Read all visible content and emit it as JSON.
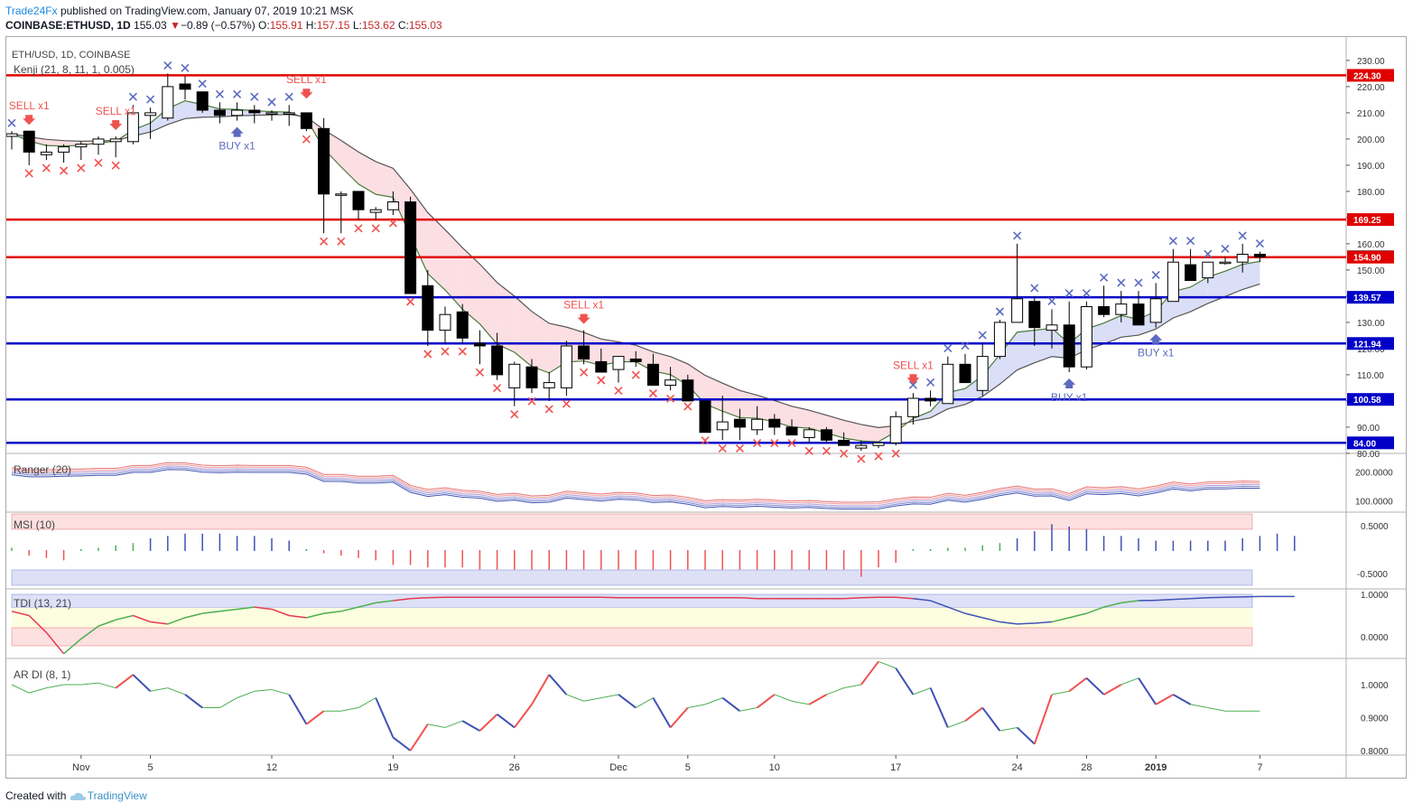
{
  "header": {
    "publisher": "Trade24Fx",
    "published_text": "published on TradingView.com, January 07, 2019 10:21 MSK",
    "symbol": "COINBASE:ETHUSD, 1D",
    "last": "155.03",
    "change_arrow": "▼",
    "change": "−0.89 (−0.57%)",
    "o_label": "O:",
    "o": "155.91",
    "h_label": "H:",
    "h": "157.15",
    "l_label": "L:",
    "l": "153.62",
    "c_label": "C:",
    "c": "155.03"
  },
  "footer": {
    "created_with": "Created with",
    "tradingview": "TradingView",
    "logo_icon": "tradingview-cloud-icon"
  },
  "colors": {
    "bull_fill": "#ffffff",
    "bear_fill": "#000000",
    "resistance": "#e00000",
    "support": "#0000c8",
    "sell": "#ef5350",
    "buy": "#5c6bc0"
  },
  "chart_data": {
    "type": "candlestick",
    "pane_label": "ETH/USD, 1D, COINBASE",
    "indicator_label": "Kenji (21, 8, 11, 1, 0.005)",
    "x_ticks": [
      "Nov",
      "5",
      "12",
      "19",
      "26",
      "Dec",
      "5",
      "10",
      "17",
      "24",
      "28",
      "2019",
      "7"
    ],
    "x_tick_index": [
      4,
      8,
      15,
      22,
      29,
      35,
      39,
      44,
      51,
      58,
      62,
      66,
      72
    ],
    "y_ticks": [
      80,
      90,
      100,
      110,
      120,
      130,
      140,
      150,
      160,
      170,
      180,
      190,
      200,
      210,
      220,
      230
    ],
    "ylim": [
      75,
      231
    ],
    "candles": [
      [
        201,
        203,
        196,
        202
      ],
      [
        203,
        203,
        190,
        195
      ],
      [
        194,
        198,
        192,
        195
      ],
      [
        195,
        198,
        191,
        197
      ],
      [
        197,
        199,
        192,
        198
      ],
      [
        198,
        201,
        194,
        200
      ],
      [
        199,
        201,
        193,
        200
      ],
      [
        199,
        213,
        198,
        210
      ],
      [
        209,
        212,
        200,
        210
      ],
      [
        208,
        225,
        207,
        220
      ],
      [
        221,
        224,
        215,
        219
      ],
      [
        218,
        218,
        210,
        211
      ],
      [
        211,
        214,
        206,
        209
      ],
      [
        209,
        214,
        207,
        211
      ],
      [
        211,
        213,
        206,
        210
      ],
      [
        210,
        211,
        207,
        210
      ],
      [
        210,
        213,
        205,
        210
      ],
      [
        210,
        210,
        203,
        204
      ],
      [
        204,
        208,
        164,
        179
      ],
      [
        179,
        180,
        164,
        179
      ],
      [
        180,
        180,
        169,
        173
      ],
      [
        172,
        174,
        169,
        173
      ],
      [
        173,
        180,
        171,
        176
      ],
      [
        176,
        178,
        141,
        141
      ],
      [
        144,
        150,
        121,
        127
      ],
      [
        127,
        136,
        122,
        133
      ],
      [
        134,
        137,
        122,
        124
      ],
      [
        122,
        127,
        114,
        121
      ],
      [
        121,
        126,
        108,
        110
      ],
      [
        105,
        115,
        98,
        114
      ],
      [
        113,
        116,
        103,
        105
      ],
      [
        105,
        111,
        100,
        107
      ],
      [
        105,
        123,
        102,
        121
      ],
      [
        121,
        127,
        114,
        116
      ],
      [
        115,
        120,
        111,
        111
      ],
      [
        112,
        117,
        107,
        117
      ],
      [
        116,
        119,
        113,
        115
      ],
      [
        114,
        118,
        106,
        106
      ],
      [
        106,
        113,
        104,
        108
      ],
      [
        108,
        110,
        101,
        100
      ],
      [
        100,
        100,
        88,
        88
      ],
      [
        89,
        102,
        85,
        92
      ],
      [
        93,
        97,
        85,
        90
      ],
      [
        89,
        98,
        87,
        93
      ],
      [
        93,
        95,
        87,
        90
      ],
      [
        90,
        93,
        87,
        87
      ],
      [
        86,
        90,
        84,
        89
      ],
      [
        89,
        90,
        84,
        85
      ],
      [
        85,
        88,
        83,
        83
      ],
      [
        82,
        85,
        81,
        83
      ],
      [
        83,
        84,
        82,
        84
      ],
      [
        84,
        96,
        83,
        94
      ],
      [
        94,
        103,
        91,
        101
      ],
      [
        101,
        104,
        98,
        100
      ],
      [
        99,
        117,
        99,
        114
      ],
      [
        114,
        118,
        107,
        107
      ],
      [
        104,
        122,
        102,
        117
      ],
      [
        117,
        131,
        116,
        130
      ],
      [
        130,
        160,
        130,
        139
      ],
      [
        138,
        140,
        121,
        128
      ],
      [
        127,
        135,
        120,
        129
      ],
      [
        129,
        138,
        111,
        113
      ],
      [
        113,
        138,
        112,
        136
      ],
      [
        136,
        144,
        132,
        133
      ],
      [
        133,
        142,
        130,
        137
      ],
      [
        137,
        142,
        129,
        129
      ],
      [
        130,
        145,
        128,
        139
      ],
      [
        138,
        158,
        138,
        153
      ],
      [
        152,
        158,
        146,
        146
      ],
      [
        147,
        153,
        145,
        153
      ],
      [
        153,
        155,
        152,
        153
      ],
      [
        153,
        160,
        149,
        156
      ],
      [
        156,
        157,
        153,
        155
      ]
    ],
    "levels": [
      {
        "name": "resistance-224",
        "value": 224.3,
        "label": "224.30",
        "color": "#e00000"
      },
      {
        "name": "resistance-169",
        "value": 169.25,
        "label": "169.25",
        "color": "#e00000"
      },
      {
        "name": "last-price",
        "value": 155.03,
        "label": "155.03",
        "color": "#000000"
      },
      {
        "name": "level-154",
        "value": 154.9,
        "label": "154.90",
        "color": "#e00000"
      },
      {
        "name": "support-139",
        "value": 139.57,
        "label": "139.57",
        "color": "#0000c8"
      },
      {
        "name": "support-121",
        "value": 121.94,
        "label": "121.94",
        "color": "#0000c8"
      },
      {
        "name": "support-100",
        "value": 100.58,
        "label": "100.58",
        "color": "#0000c8"
      },
      {
        "name": "support-84",
        "value": 84.0,
        "label": "84.00",
        "color": "#0000c8"
      }
    ],
    "signals": [
      {
        "type": "sell",
        "i": 1,
        "price": 203,
        "label": "SELL x1"
      },
      {
        "type": "sell",
        "i": 6,
        "price": 201,
        "label": "SELL x1"
      },
      {
        "type": "buy",
        "i": 13,
        "price": 207,
        "label": "BUY x1"
      },
      {
        "type": "sell",
        "i": 17,
        "price": 213,
        "label": "SELL x1"
      },
      {
        "type": "sell",
        "i": 33,
        "price": 127,
        "label": "SELL x1"
      },
      {
        "type": "sell",
        "i": 52,
        "price": 104,
        "label": "SELL x1"
      },
      {
        "type": "buy",
        "i": 61,
        "price": 111,
        "label": "BUY x1"
      },
      {
        "type": "buy",
        "i": 66,
        "price": 128,
        "label": "BUY x1"
      }
    ],
    "marker_note": "crosses above = blue, crosses below = red, derived from candles",
    "indicators": [
      {
        "name": "Ranger (20)",
        "y_ticks": [
          "200.0000",
          "100.0000"
        ]
      },
      {
        "name": "MSI (10)",
        "y_ticks": [
          "0.5000",
          "-0.5000"
        ]
      },
      {
        "name": "TDI (13, 21)",
        "y_ticks": [
          "1.0000",
          "0.0000"
        ]
      },
      {
        "name": "AR DI (8, 1)",
        "y_ticks": [
          "1.0000",
          "0.9000",
          "0.8000"
        ]
      }
    ],
    "msi_values": [
      0.05,
      -0.1,
      -0.15,
      -0.2,
      0.0,
      0.05,
      0.1,
      0.15,
      0.25,
      0.3,
      0.35,
      0.35,
      0.35,
      0.3,
      0.3,
      0.25,
      0.2,
      0.0,
      -0.05,
      -0.1,
      -0.15,
      -0.2,
      -0.3,
      -0.3,
      -0.35,
      -0.35,
      -0.35,
      -0.4,
      -0.4,
      -0.4,
      -0.4,
      -0.4,
      -0.4,
      -0.4,
      -0.4,
      -0.4,
      -0.4,
      -0.4,
      -0.4,
      -0.4,
      -0.4,
      -0.4,
      -0.4,
      -0.4,
      -0.4,
      -0.4,
      -0.4,
      -0.4,
      -0.4,
      -0.55,
      -0.35,
      -0.25,
      0.0,
      0.0,
      0.05,
      0.05,
      0.1,
      0.15,
      0.25,
      0.4,
      0.55,
      0.5,
      0.45,
      0.3,
      0.3,
      0.25,
      0.2,
      0.2,
      0.2,
      0.2,
      0.2,
      0.25,
      0.3,
      0.35,
      0.3
    ],
    "tdi_values": [
      0.6,
      0.5,
      0.1,
      -0.4,
      -0.05,
      0.25,
      0.4,
      0.5,
      0.35,
      0.3,
      0.45,
      0.55,
      0.6,
      0.65,
      0.7,
      0.65,
      0.5,
      0.45,
      0.55,
      0.6,
      0.7,
      0.8,
      0.85,
      0.9,
      0.92,
      0.93,
      0.93,
      0.93,
      0.93,
      0.93,
      0.93,
      0.93,
      0.93,
      0.93,
      0.93,
      0.92,
      0.92,
      0.92,
      0.92,
      0.92,
      0.92,
      0.92,
      0.92,
      0.9,
      0.9,
      0.9,
      0.9,
      0.9,
      0.9,
      0.92,
      0.93,
      0.93,
      0.9,
      0.85,
      0.7,
      0.55,
      0.45,
      0.35,
      0.3,
      0.32,
      0.35,
      0.45,
      0.55,
      0.7,
      0.8,
      0.85,
      0.86,
      0.88,
      0.9,
      0.92,
      0.93,
      0.94,
      0.95,
      0.95,
      0.95
    ],
    "ardi_values": [
      1.0,
      0.975,
      0.99,
      1.0,
      1.0,
      1.005,
      0.99,
      1.03,
      0.98,
      0.99,
      0.97,
      0.93,
      0.93,
      0.96,
      0.98,
      0.985,
      0.97,
      0.88,
      0.92,
      0.92,
      0.93,
      0.96,
      0.84,
      0.8,
      0.88,
      0.87,
      0.89,
      0.86,
      0.91,
      0.87,
      0.94,
      1.03,
      0.97,
      0.95,
      0.96,
      0.97,
      0.93,
      0.96,
      0.87,
      0.93,
      0.94,
      0.96,
      0.92,
      0.93,
      0.97,
      0.95,
      0.94,
      0.97,
      0.99,
      1.0,
      1.07,
      1.05,
      0.97,
      0.99,
      0.87,
      0.89,
      0.93,
      0.86,
      0.87,
      0.82,
      0.97,
      0.98,
      1.02,
      0.97,
      1.0,
      1.02,
      0.94,
      0.97,
      0.94,
      0.93,
      0.92,
      0.92,
      0.92
    ]
  }
}
